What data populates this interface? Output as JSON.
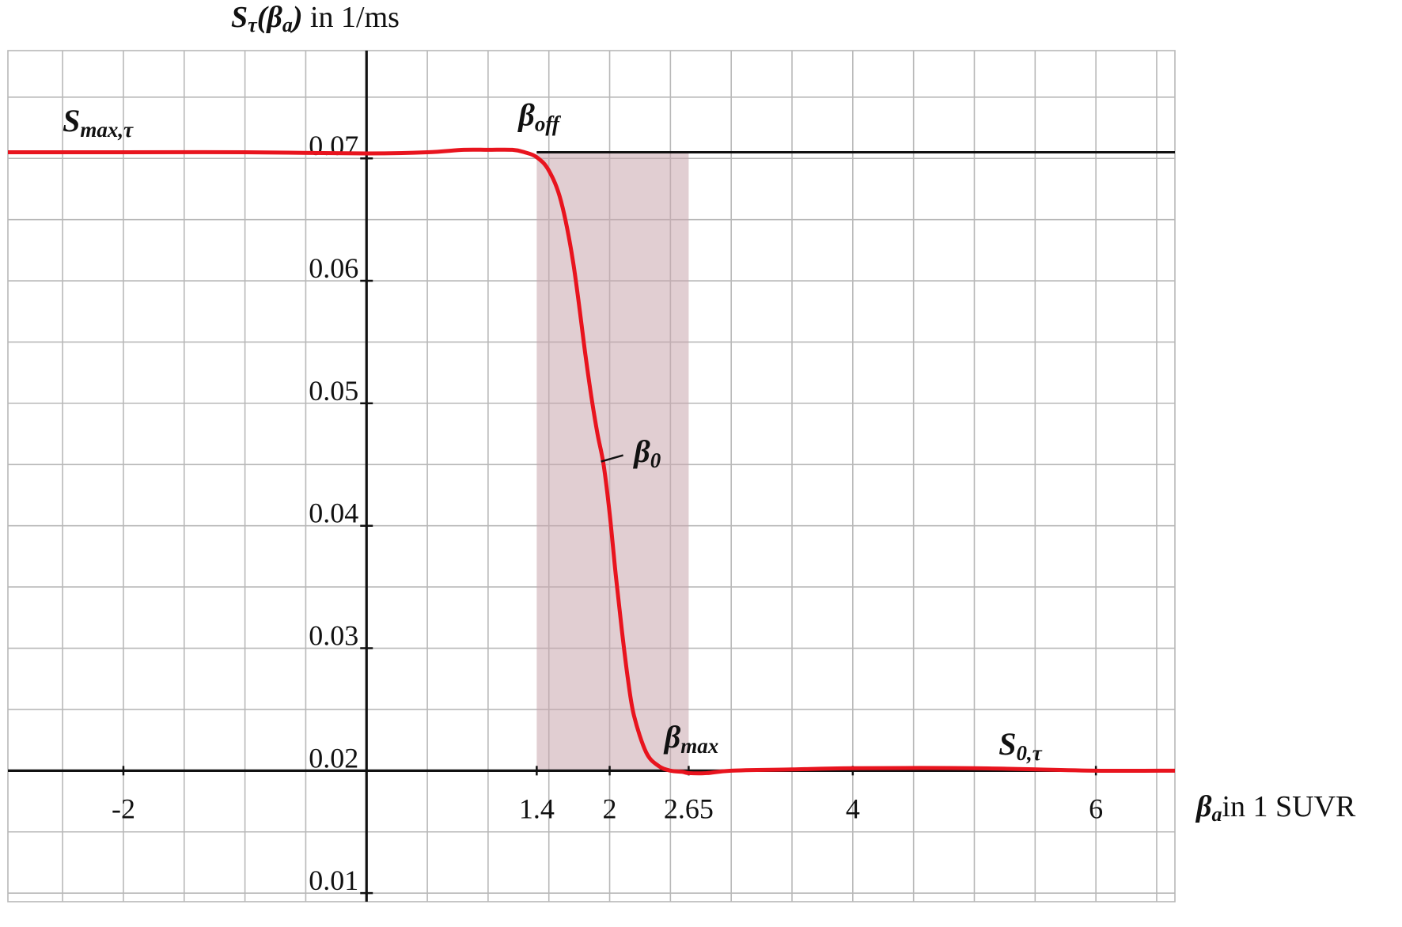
{
  "chart_data": {
    "type": "line",
    "y_title": {
      "main": "S",
      "sub": "τ",
      "arg_main": "β",
      "arg_sub": "a",
      "units": "in 1/ms"
    },
    "x_title": {
      "main": "β",
      "sub": "a",
      "units": "in 1 SUVR"
    },
    "xlim": [
      -2.95,
      6.65
    ],
    "ylim": [
      0.0093,
      0.0788
    ],
    "x_ticks": [
      {
        "value": -2,
        "label": "-2"
      },
      {
        "value": 1.4,
        "label": "1.4"
      },
      {
        "value": 2,
        "label": "2"
      },
      {
        "value": 2.65,
        "label": "2.65"
      },
      {
        "value": 4,
        "label": "4"
      },
      {
        "value": 6,
        "label": "6"
      }
    ],
    "y_ticks": [
      {
        "value": 0.02,
        "label": "0.02"
      },
      {
        "value": 0.03,
        "label": "0.03"
      },
      {
        "value": 0.04,
        "label": "0.04"
      },
      {
        "value": 0.05,
        "label": "0.05"
      },
      {
        "value": 0.06,
        "label": "0.06"
      },
      {
        "value": 0.07,
        "label": "0.07"
      },
      {
        "value": 0.01,
        "label": "0.01"
      }
    ],
    "x_axis_crosses_y": 0.02,
    "grid": true,
    "grid_x_step": 0.5,
    "grid_y_step": 0.005,
    "reference_line": {
      "y": 0.0705,
      "x_from": 1.4
    },
    "shaded_band": {
      "x_from": 1.4,
      "x_to": 2.65,
      "color": "#c9a6ad"
    },
    "series": [
      {
        "color": "#e8141e",
        "x": [
          -2.95,
          -2.0,
          -1.0,
          0.0,
          0.5,
          0.8,
          1.0,
          1.2,
          1.3,
          1.4,
          1.5,
          1.6,
          1.7,
          1.8,
          1.85,
          1.9,
          1.95,
          2.0,
          2.05,
          2.1,
          2.15,
          2.2,
          2.3,
          2.4,
          2.5,
          2.6,
          2.65,
          2.8,
          3.0,
          3.5,
          4.0,
          5.0,
          6.0,
          6.65
        ],
        "y": [
          0.0705,
          0.0705,
          0.0705,
          0.0704,
          0.0705,
          0.0707,
          0.0707,
          0.0707,
          0.0705,
          0.0701,
          0.069,
          0.0665,
          0.0615,
          0.054,
          0.0505,
          0.0475,
          0.045,
          0.041,
          0.036,
          0.0315,
          0.0275,
          0.0245,
          0.0215,
          0.0204,
          0.02,
          0.0199,
          0.0198,
          0.0198,
          0.02,
          0.0201,
          0.0202,
          0.0202,
          0.02,
          0.02
        ]
      }
    ],
    "annotations": [
      {
        "main": "S",
        "sub": "max,τ",
        "x": -2.5,
        "y": 0.0722
      },
      {
        "main": "β",
        "sub": "off",
        "x": 1.25,
        "y": 0.0727
      },
      {
        "main": "β",
        "sub": "0",
        "x": 2.2,
        "y": 0.0452
      },
      {
        "main": "β",
        "sub": "max",
        "x": 2.45,
        "y": 0.0219
      },
      {
        "main": "S",
        "sub": "0,τ",
        "x": 5.2,
        "y": 0.0213
      }
    ],
    "marker": {
      "x": 2.02,
      "y": 0.0455
    }
  }
}
